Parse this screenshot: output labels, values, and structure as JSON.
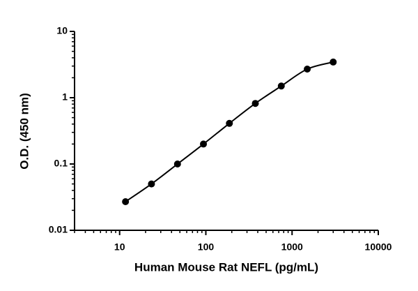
{
  "chart_data": {
    "type": "scatter",
    "x_label": "Human Mouse Rat NEFL (pg/mL)",
    "y_label": "O.D. (450 nm)",
    "x_log": true,
    "y_log": true,
    "minor_ticks": true,
    "fit_curve": true,
    "xlim": [
      3,
      10000
    ],
    "ylim": [
      0.01,
      10
    ],
    "xticks": [
      10,
      100,
      1000,
      10000
    ],
    "yticks": [
      0.01,
      0.1,
      1,
      10
    ],
    "series": [
      {
        "color": "#000000",
        "x": [
          11.7,
          23.4,
          46.9,
          93.75,
          187.5,
          375,
          750,
          1500,
          3000
        ],
        "values": [
          0.027,
          0.05,
          0.1,
          0.2,
          0.41,
          0.82,
          1.5,
          2.7,
          3.45
        ]
      }
    ]
  }
}
